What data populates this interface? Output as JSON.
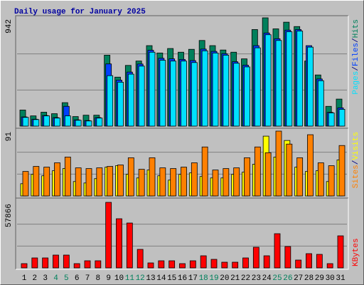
{
  "chart_data": [
    {
      "type": "bar",
      "title": "Daily usage for January 2025",
      "legend_separator": "/",
      "ylim": [
        0,
        942
      ],
      "yticks": [
        942
      ],
      "series": [
        {
          "name": "Hits",
          "color": "#00805c",
          "values": [
            140,
            89,
            121,
            108,
            204,
            83,
            95,
            95,
            617,
            426,
            528,
            566,
            700,
            636,
            675,
            643,
            668,
            745,
            700,
            662,
            643,
            585,
            840,
            942,
            846,
            904,
            866,
            566,
            445,
            172,
            235
          ]
        },
        {
          "name": "Files",
          "color": "#0040ff",
          "values": [
            80,
            60,
            92,
            74,
            172,
            54,
            48,
            74,
            541,
            400,
            470,
            540,
            660,
            590,
            585,
            580,
            570,
            670,
            650,
            630,
            560,
            530,
            700,
            810,
            760,
            835,
            840,
            700,
            410,
            120,
            159
          ]
        },
        {
          "name": "Pages",
          "color": "#00e0ff",
          "values": [
            76,
            57,
            89,
            70,
            89,
            51,
            45,
            70,
            439,
            382,
            452,
            522,
            643,
            573,
            566,
            566,
            553,
            655,
            636,
            617,
            547,
            515,
            681,
            795,
            745,
            821,
            827,
            687,
            395,
            115,
            146
          ]
        }
      ]
    },
    {
      "type": "bar",
      "legend_separator": "/",
      "ylim": [
        0,
        91
      ],
      "yticks": [
        91
      ],
      "series": [
        {
          "name": "Visits",
          "color": "#ffff00",
          "values": [
            17,
            30,
            28,
            35,
            38,
            20,
            18,
            24,
            40,
            42,
            30,
            25,
            36,
            28,
            22,
            30,
            32,
            27,
            25,
            25,
            30,
            33,
            44,
            83,
            54,
            77,
            40,
            34,
            35,
            20,
            50
          ]
        },
        {
          "name": "Sites",
          "color": "#ff8000",
          "values": [
            34,
            41,
            40,
            46,
            54,
            39,
            38,
            39,
            41,
            43,
            53,
            37,
            53,
            39,
            38,
            40,
            46,
            68,
            36,
            38,
            39,
            53,
            68,
            60,
            90,
            72,
            53,
            85,
            46,
            42,
            70
          ]
        }
      ]
    },
    {
      "type": "bar",
      "ylim": [
        0,
        57866
      ],
      "yticks": [
        57866
      ],
      "categories": [
        "1",
        "2",
        "3",
        "4",
        "5",
        "6",
        "7",
        "8",
        "9",
        "10",
        "11",
        "12",
        "13",
        "14",
        "15",
        "16",
        "17",
        "18",
        "19",
        "20",
        "21",
        "22",
        "23",
        "24",
        "25",
        "26",
        "27",
        "28",
        "29",
        "30",
        "31"
      ],
      "category_colors": [
        "#000000",
        "#000000",
        "#000000",
        "#00805c",
        "#00805c",
        "#000000",
        "#000000",
        "#000000",
        "#000000",
        "#000000",
        "#00805c",
        "#00805c",
        "#000000",
        "#000000",
        "#000000",
        "#000000",
        "#000000",
        "#00805c",
        "#00805c",
        "#000000",
        "#000000",
        "#000000",
        "#000000",
        "#000000",
        "#00805c",
        "#00805c",
        "#000000",
        "#000000",
        "#000000",
        "#000000",
        "#000000"
      ],
      "series": [
        {
          "name": "KBytes",
          "color": "#ff0000",
          "values": [
            3774,
            8806,
            8806,
            11322,
            11322,
            3774,
            6290,
            6290,
            57866,
            43400,
            39630,
            16353,
            4403,
            6290,
            6290,
            3774,
            6290,
            10693,
            7548,
            5032,
            5032,
            8806,
            18240,
            10693,
            30192,
            18870,
            6919,
            12580,
            11950,
            3774,
            28304
          ]
        }
      ]
    }
  ]
}
